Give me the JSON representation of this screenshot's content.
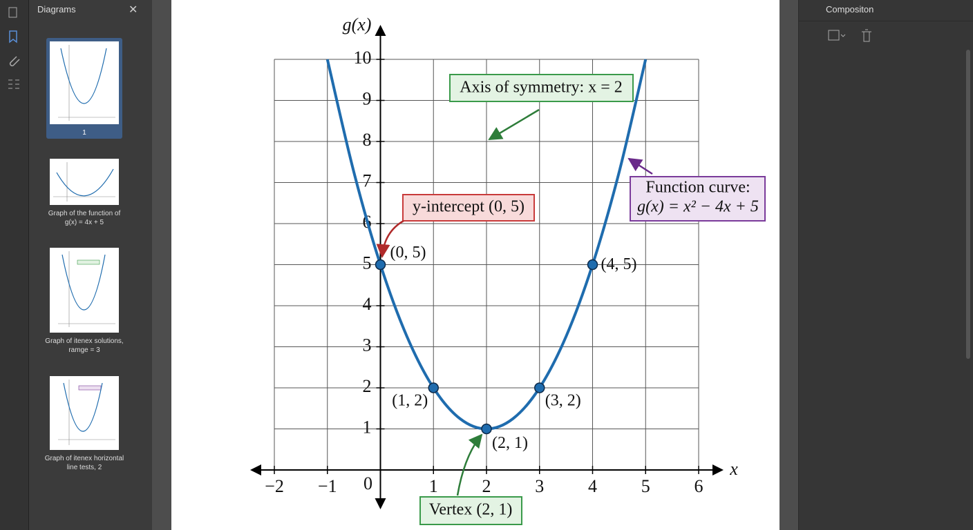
{
  "sidebar": {
    "title": "Diagrams",
    "thumbnails": [
      {
        "caption": "1"
      },
      {
        "caption": "Graph of the function of g(x) = 4x + 5"
      },
      {
        "caption": "Graph of itenex solutions, ramge = 3"
      },
      {
        "caption": "Graph of itenex horizontal line tests, 2"
      }
    ]
  },
  "right_panel": {
    "title": "Compositon"
  },
  "chart_data": {
    "type": "line",
    "x_label": "x",
    "y_label": "g(x)",
    "x": [
      -1,
      -0.5,
      0,
      0.5,
      1,
      1.5,
      2,
      2.5,
      3,
      3.5,
      4,
      4.5,
      5
    ],
    "values": [
      10,
      7.25,
      5,
      3.25,
      2,
      1.25,
      1,
      1.25,
      2,
      3.25,
      5,
      7.25,
      10
    ],
    "color": "#1f6cae",
    "points": {
      "x": [
        0,
        1,
        2,
        3,
        4
      ],
      "values": [
        5,
        2,
        1,
        2,
        5
      ],
      "labels": [
        "(0, 5)",
        "(1, 2)",
        "(2, 1)",
        "(3, 2)",
        "(4, 5)"
      ],
      "color": "#1f6cae"
    },
    "xlim": [
      -2,
      6
    ],
    "ylim": [
      0,
      10
    ],
    "xticks": [
      {
        "value": -2,
        "label": "−2"
      },
      {
        "value": -1,
        "label": "−1"
      },
      0,
      1,
      2,
      3,
      4,
      5,
      6
    ],
    "yticks": [
      1,
      2,
      3,
      4,
      5,
      6,
      7,
      8,
      9,
      10
    ],
    "grid": true,
    "annotations": {
      "axis_of_symmetry": "Axis of symmetry: x = 2",
      "function_curve": [
        "Function curve:",
        "g(x) = x² − 4x + 5"
      ],
      "y_intercept": "y-intercept (0, 5)",
      "vertex": "Vertex (2, 1)"
    }
  }
}
